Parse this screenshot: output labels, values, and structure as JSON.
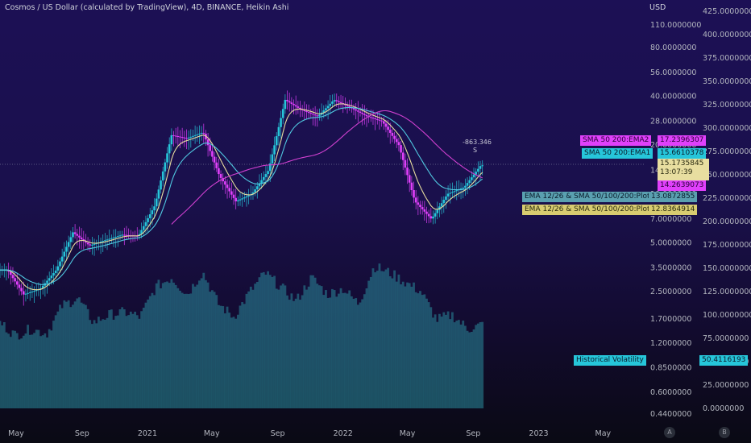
{
  "header": {
    "title": "Cosmos / US Dollar (calculated by TradingView), 4D, BINANCE, Heikin Ashi",
    "currency": "USD"
  },
  "colors": {
    "up": "#26c6da",
    "down": "#e040fb",
    "ema12": "#e8dea0",
    "ema26": "#50c8e0",
    "sma200": "#d040d0",
    "volatility": "#2a8a9a"
  },
  "tags": {
    "ema2": {
      "label": "SMA 50 200:EMA2",
      "value": "17.2396307"
    },
    "ema1": {
      "label": "SMA 50 200:EMA1",
      "value": "15.6610378"
    },
    "price": "15.1735845",
    "countdown": "13:07:39",
    "sma200": "14.2639073",
    "plot1": {
      "label": "EMA 12/26 & SMA 50/100/200:Plot",
      "value": "13.0872855"
    },
    "plot2": {
      "label": "EMA 12/26 & SMA 50/100/200:Plot",
      "value": "12.8364914"
    },
    "hv": {
      "label": "Historical Volatility",
      "value": "50.4116193"
    }
  },
  "annotation": {
    "value": "-863.346",
    "marker": "S"
  },
  "badges": {
    "a": "A",
    "b": "B"
  },
  "chart_data": {
    "type": "candlestick",
    "price_axis": {
      "scale": "log",
      "ticks": [
        "110.0000000",
        "80.0000000",
        "56.0000000",
        "40.0000000",
        "28.0000000",
        "20.0000000",
        "14.0000000",
        "10.0000000",
        "7.0000000",
        "5.0000000",
        "3.5000000",
        "2.5000000",
        "1.7000000",
        "1.2000000",
        "0.8500000",
        "0.6000000",
        "0.4400000"
      ]
    },
    "volatility_axis": {
      "ticks": [
        "425.0000000",
        "400.0000000",
        "375.0000000",
        "350.0000000",
        "325.0000000",
        "300.0000000",
        "275.0000000",
        "250.0000000",
        "225.0000000",
        "200.0000000",
        "175.0000000",
        "150.0000000",
        "125.0000000",
        "100.0000000",
        "75.0000000",
        "50.0000000",
        "25.0000000",
        "0.0000000"
      ]
    },
    "x_labels": [
      "May",
      "Sep",
      "2021",
      "May",
      "Sep",
      "2022",
      "May",
      "Sep",
      "2023",
      "May"
    ],
    "price_path": [
      [
        "2020-04",
        3.4
      ],
      [
        "2020-05",
        2.4
      ],
      [
        "2020-06",
        2.6
      ],
      [
        "2020-07",
        3.4
      ],
      [
        "2020-08",
        5.8
      ],
      [
        "2020-09",
        4.8
      ],
      [
        "2020-10",
        5.2
      ],
      [
        "2020-11",
        5.6
      ],
      [
        "2020-12",
        5.5
      ],
      [
        "2021-01",
        8.5
      ],
      [
        "2021-02",
        23
      ],
      [
        "2021-03",
        22
      ],
      [
        "2021-04",
        24
      ],
      [
        "2021-05",
        13
      ],
      [
        "2021-06",
        9
      ],
      [
        "2021-07",
        10
      ],
      [
        "2021-08",
        14
      ],
      [
        "2021-09",
        38
      ],
      [
        "2021-10",
        33
      ],
      [
        "2021-11",
        30
      ],
      [
        "2021-12",
        38
      ],
      [
        "2022-01",
        34
      ],
      [
        "2022-02",
        30
      ],
      [
        "2022-03",
        28
      ],
      [
        "2022-04",
        20
      ],
      [
        "2022-05",
        9
      ],
      [
        "2022-06",
        7
      ],
      [
        "2022-07",
        10
      ],
      [
        "2022-08",
        11
      ],
      [
        "2022-09",
        15
      ]
    ],
    "volatility_series": [
      92,
      78,
      85,
      80,
      110,
      118,
      92,
      100,
      103,
      98,
      130,
      140,
      122,
      146,
      112,
      98,
      124,
      145,
      130,
      115,
      140,
      122,
      128,
      112,
      152,
      145,
      135,
      125,
      95,
      100,
      85,
      90
    ]
  }
}
